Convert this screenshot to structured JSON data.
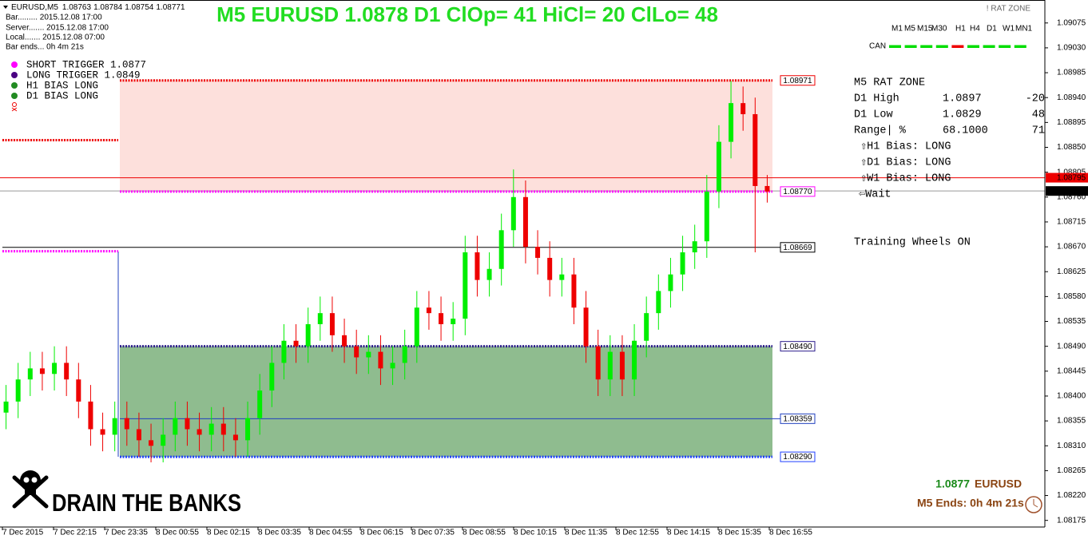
{
  "header": {
    "symbol": "EURUSD,M5",
    "ohlc": [
      1.08763,
      1.08784,
      1.08754,
      1.08771
    ],
    "info": [
      "Bar......... 2015.12.08 17:00",
      "Server....... 2015.12.08 17:00",
      "Local....... 2015.12.08 07:00",
      "Bar ends... 0h 4m 21s"
    ],
    "title": "M5 EURUSD 1.0878 D1 ClOp= 41 HiCl= 20 ClLo= 48",
    "badge": "! RAT ZONE"
  },
  "timeframes": {
    "labels": [
      "M1",
      "M5",
      "M15",
      "M30",
      "H1",
      "H4",
      "D1",
      "W1",
      "MN1"
    ],
    "active": "M5"
  },
  "can": {
    "label": "CAN",
    "signals": [
      "#00dd00",
      "#00dd00",
      "#00dd00",
      "#00dd00",
      "#ee0000",
      "#00dd00",
      "#00dd00",
      "#00dd00",
      "#00dd00"
    ]
  },
  "legend": [
    {
      "text": "SHORT TRIGGER 1.0877",
      "color": "#ff00ff"
    },
    {
      "text": "LONG TRIGGER  1.0849",
      "color": "#4b0082"
    },
    {
      "text": "H1 BIAS LONG",
      "color": "#228b22"
    },
    {
      "text": "D1 BIAS LONG",
      "color": "#228b22"
    }
  ],
  "panel": {
    "title": "M5 RAT ZONE",
    "rows": [
      {
        "cells": [
          "D1 High",
          "1.0897",
          "-20"
        ],
        "color": "#cc0000"
      },
      {
        "cells": [
          "D1 Low",
          "1.0829",
          "48"
        ],
        "color": "#1a8a1a"
      },
      {
        "cells": [
          "Range| %",
          "68.1000",
          "71"
        ],
        "color": "#1a8a1a"
      }
    ],
    "bias": [
      "⇧H1 Bias: LONG",
      "⇧D1 Bias: LONG",
      "⇧W1 Bias: LONG"
    ],
    "wait": "⇦Wait",
    "footer": "Training Wheels ON"
  },
  "footer": {
    "brand": "DRAIN THE BANKS",
    "price": "1.0877",
    "symbol": "EURUSD",
    "ends": "M5 Ends: 0h 4m 21s"
  },
  "chart_data": {
    "type": "candlestick",
    "up_color": "#00ee00",
    "down_color": "#ee0000",
    "ylim": [
      1.08163,
      1.09105
    ],
    "yticks": [
      1.09075,
      {
        "value": 1.0903,
        "label": "1.09030"
      },
      1.08985,
      {
        "value": 1.0894,
        "label": "1.08940"
      },
      1.08895,
      {
        "value": 1.0885,
        "label": "1.08850"
      },
      1.08805,
      {
        "value": 1.0876,
        "label": "1.08760"
      },
      1.08715,
      {
        "value": 1.0867,
        "label": "1.08670"
      },
      1.08625,
      {
        "value": 1.0858,
        "label": "1.08580"
      },
      1.08535,
      {
        "value": 1.0849,
        "label": "1.08490"
      },
      1.08445,
      {
        "value": 1.084,
        "label": "1.08400"
      },
      1.08355,
      {
        "value": 1.0831,
        "label": "1.08310"
      },
      1.08265,
      {
        "value": 1.0822,
        "label": "1.08220"
      },
      1.08175
    ],
    "x_labels": [
      "7 Dec 2015",
      "7 Dec 22:15",
      "7 Dec 23:35",
      "8 Dec 00:55",
      "8 Dec 02:15",
      "8 Dec 03:35",
      "8 Dec 04:55",
      "8 Dec 06:15",
      "8 Dec 07:35",
      "8 Dec 08:55",
      "8 Dec 10:15",
      "8 Dec 11:35",
      "8 Dec 12:55",
      "8 Dec 14:15",
      "8 Dec 15:35",
      "8 Dec 16:55"
    ],
    "zones": [
      {
        "top": 1.08971,
        "bottom": 1.0877,
        "color": "#fde0dc"
      },
      {
        "top": 1.0849,
        "bottom": 1.0829,
        "color": "#8fbc8f"
      }
    ],
    "levels": [
      {
        "value": 1.08863,
        "color": "#ee0000",
        "style": "dots",
        "span": "left"
      },
      {
        "value": 1.08662,
        "color": "#ff00ff",
        "style": "dots",
        "span": "left"
      },
      {
        "value": 1.08971,
        "color": "#ee0000",
        "style": "dots",
        "span": "zone",
        "tag": "box"
      },
      {
        "value": 1.0877,
        "label": "1.08770",
        "color": "#ff00ff",
        "style": "dots",
        "span": "zone",
        "tag": "box"
      },
      {
        "value": 1.08795,
        "color": "#ee0000",
        "style": "solid",
        "span": "full",
        "tag": "axis"
      },
      {
        "value": 1.08771,
        "color": "#999999",
        "style": "solid",
        "span": "full",
        "tag": "axis"
      },
      {
        "value": 1.08669,
        "color": "#000000",
        "style": "solid",
        "span": "chart",
        "tag": "box"
      },
      {
        "value": 1.0849,
        "label": "1.08490",
        "color": "#2b1b8b",
        "style": "dots",
        "span": "zone",
        "tag": "box"
      },
      {
        "value": 1.08359,
        "color": "#1f3fbf",
        "style": "solid",
        "span": "zonechart",
        "tag": "box"
      },
      {
        "value": 1.0829,
        "label": "1.08290",
        "color": "#1f3fff",
        "style": "dots",
        "span": "zone",
        "tag": "box"
      }
    ],
    "candles": [
      [
        1.0837,
        1.0842,
        1.0834,
        1.0839
      ],
      [
        1.0839,
        1.0846,
        1.0836,
        1.0843
      ],
      [
        1.0843,
        1.0848,
        1.084,
        1.0845
      ],
      [
        1.0845,
        1.0848,
        1.0841,
        1.0844
      ],
      [
        1.0844,
        1.0849,
        1.0841,
        1.0846
      ],
      [
        1.0846,
        1.0849,
        1.084,
        1.0843
      ],
      [
        1.0843,
        1.0846,
        1.0836,
        1.0839
      ],
      [
        1.0839,
        1.0842,
        1.0831,
        1.0834
      ],
      [
        1.0834,
        1.0837,
        1.083,
        1.0833
      ],
      [
        1.0833,
        1.0839,
        1.083,
        1.0836
      ],
      [
        1.0836,
        1.0839,
        1.0831,
        1.0834
      ],
      [
        1.0834,
        1.0837,
        1.0829,
        1.0832
      ],
      [
        1.0832,
        1.0835,
        1.0828,
        1.0831
      ],
      [
        1.0831,
        1.0836,
        1.0828,
        1.0833
      ],
      [
        1.0833,
        1.0839,
        1.083,
        1.0836
      ],
      [
        1.0836,
        1.0839,
        1.0831,
        1.0834
      ],
      [
        1.0834,
        1.0837,
        1.083,
        1.0833
      ],
      [
        1.0833,
        1.0838,
        1.083,
        1.0835
      ],
      [
        1.0835,
        1.0838,
        1.083,
        1.0833
      ],
      [
        1.0833,
        1.0836,
        1.0829,
        1.0832
      ],
      [
        1.0832,
        1.0839,
        1.0829,
        1.0836
      ],
      [
        1.0836,
        1.0844,
        1.0833,
        1.0841
      ],
      [
        1.0841,
        1.0849,
        1.0838,
        1.0846
      ],
      [
        1.0846,
        1.0853,
        1.0843,
        1.085
      ],
      [
        1.085,
        1.0853,
        1.0846,
        1.0849
      ],
      [
        1.0849,
        1.0856,
        1.0846,
        1.0853
      ],
      [
        1.0853,
        1.0858,
        1.085,
        1.0855
      ],
      [
        1.0855,
        1.0858,
        1.0848,
        1.0851
      ],
      [
        1.0851,
        1.0854,
        1.0846,
        1.0849
      ],
      [
        1.0849,
        1.0852,
        1.0844,
        1.0847
      ],
      [
        1.0847,
        1.0851,
        1.0844,
        1.0848
      ],
      [
        1.0848,
        1.0851,
        1.0842,
        1.0845
      ],
      [
        1.0845,
        1.0849,
        1.0842,
        1.0846
      ],
      [
        1.0846,
        1.0852,
        1.0843,
        1.0849
      ],
      [
        1.0849,
        1.0859,
        1.0846,
        1.0856
      ],
      [
        1.0856,
        1.0859,
        1.0852,
        1.0855
      ],
      [
        1.0855,
        1.0858,
        1.085,
        1.0853
      ],
      [
        1.0853,
        1.0857,
        1.085,
        1.0854
      ],
      [
        1.0854,
        1.0869,
        1.0851,
        1.0866
      ],
      [
        1.0866,
        1.0869,
        1.0858,
        1.0861
      ],
      [
        1.0861,
        1.0866,
        1.0858,
        1.0863
      ],
      [
        1.0863,
        1.0873,
        1.086,
        1.087
      ],
      [
        1.087,
        1.0881,
        1.0867,
        1.0876
      ],
      [
        1.0876,
        1.0879,
        1.0864,
        1.0867
      ],
      [
        1.0867,
        1.087,
        1.0862,
        1.0865
      ],
      [
        1.0865,
        1.0868,
        1.0858,
        1.0861
      ],
      [
        1.0861,
        1.0865,
        1.0858,
        1.0862
      ],
      [
        1.0862,
        1.0865,
        1.0853,
        1.0856
      ],
      [
        1.0856,
        1.0859,
        1.0846,
        1.0849
      ],
      [
        1.0849,
        1.0852,
        1.084,
        1.0843
      ],
      [
        1.0843,
        1.0851,
        1.084,
        1.0848
      ],
      [
        1.0848,
        1.0851,
        1.084,
        1.0843
      ],
      [
        1.0843,
        1.0853,
        1.084,
        1.085
      ],
      [
        1.085,
        1.0858,
        1.0847,
        1.0855
      ],
      [
        1.0855,
        1.0862,
        1.0852,
        1.0859
      ],
      [
        1.0859,
        1.0865,
        1.0856,
        1.0862
      ],
      [
        1.0862,
        1.0869,
        1.0859,
        1.0866
      ],
      [
        1.0866,
        1.0871,
        1.0863,
        1.0868
      ],
      [
        1.0868,
        1.088,
        1.0865,
        1.0877
      ],
      [
        1.0877,
        1.0889,
        1.0874,
        1.0886
      ],
      [
        1.0886,
        1.0897,
        1.0883,
        1.0893
      ],
      [
        1.0893,
        1.0896,
        1.0888,
        1.0891
      ],
      [
        1.0891,
        1.0894,
        1.0866,
        1.0878
      ],
      [
        1.0878,
        1.088,
        1.0875,
        1.0877
      ]
    ]
  }
}
